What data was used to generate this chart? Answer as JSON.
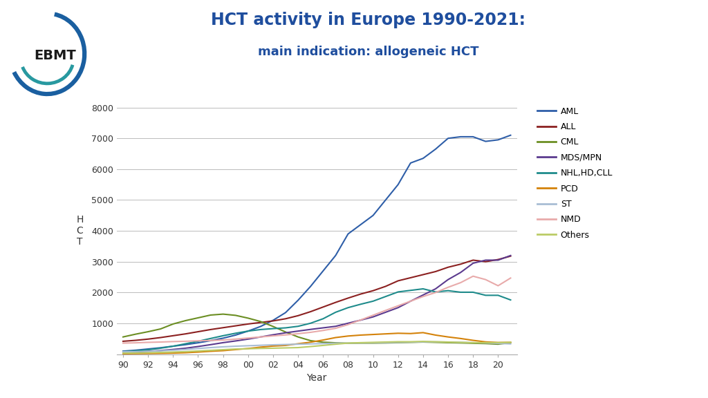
{
  "title_line1": "HCT activity in Europe 1990-2021:",
  "title_line2": "main indication: allogeneic HCT",
  "xlabel": "Year",
  "ylabel": "H\nC\nT",
  "ylim": [
    0,
    8000
  ],
  "yticks": [
    0,
    1000,
    2000,
    3000,
    4000,
    5000,
    6000,
    7000,
    8000
  ],
  "years": [
    1990,
    1991,
    1992,
    1993,
    1994,
    1995,
    1996,
    1997,
    1998,
    1999,
    2000,
    2001,
    2002,
    2003,
    2004,
    2005,
    2006,
    2007,
    2008,
    2009,
    2010,
    2011,
    2012,
    2013,
    2014,
    2015,
    2016,
    2017,
    2018,
    2019,
    2020,
    2021
  ],
  "xtick_labels": [
    "90",
    "92",
    "94",
    "96",
    "98",
    "00",
    "02",
    "04",
    "06",
    "08",
    "10",
    "12",
    "14",
    "16",
    "18",
    "20"
  ],
  "xtick_positions": [
    1990,
    1992,
    1994,
    1996,
    1998,
    2000,
    2002,
    2004,
    2006,
    2008,
    2010,
    2012,
    2014,
    2016,
    2018,
    2020
  ],
  "series": {
    "AML": {
      "color": "#2E5EA8",
      "data": [
        100,
        130,
        170,
        210,
        260,
        310,
        370,
        440,
        520,
        620,
        750,
        900,
        1100,
        1350,
        1750,
        2200,
        2700,
        3200,
        3900,
        4200,
        4500,
        5000,
        5500,
        6200,
        6350,
        6650,
        7000,
        7050,
        7050,
        6900,
        6950,
        7100
      ]
    },
    "ALL": {
      "color": "#8B2020",
      "data": [
        420,
        450,
        490,
        540,
        600,
        660,
        730,
        800,
        860,
        920,
        980,
        1030,
        1080,
        1150,
        1250,
        1380,
        1530,
        1680,
        1820,
        1950,
        2060,
        2200,
        2380,
        2480,
        2580,
        2680,
        2820,
        2920,
        3050,
        3000,
        3070,
        3180
      ]
    },
    "CML": {
      "color": "#6B8E23",
      "data": [
        560,
        650,
        730,
        820,
        980,
        1090,
        1180,
        1270,
        1300,
        1260,
        1170,
        1060,
        900,
        720,
        560,
        440,
        390,
        370,
        355,
        360,
        360,
        365,
        375,
        385,
        395,
        385,
        375,
        365,
        355,
        345,
        325,
        375
      ]
    },
    "MDS/MPN": {
      "color": "#5B3A8E",
      "data": [
        60,
        75,
        95,
        120,
        155,
        195,
        250,
        310,
        375,
        430,
        490,
        560,
        630,
        695,
        750,
        805,
        855,
        905,
        1005,
        1105,
        1210,
        1360,
        1510,
        1720,
        1920,
        2120,
        2420,
        2650,
        2950,
        3050,
        3050,
        3200
      ]
    },
    "NHL,HD,CLL": {
      "color": "#1E8B8B",
      "data": [
        85,
        110,
        145,
        195,
        260,
        340,
        420,
        510,
        600,
        680,
        750,
        800,
        830,
        855,
        905,
        1005,
        1150,
        1360,
        1510,
        1620,
        1720,
        1870,
        2020,
        2070,
        2120,
        2020,
        2060,
        2010,
        2010,
        1910,
        1910,
        1760
      ]
    },
    "PCD": {
      "color": "#D4820A",
      "data": [
        15,
        18,
        22,
        28,
        35,
        48,
        70,
        95,
        115,
        150,
        185,
        230,
        265,
        285,
        340,
        390,
        460,
        540,
        590,
        620,
        640,
        660,
        680,
        670,
        700,
        620,
        560,
        510,
        450,
        400,
        380,
        385
      ]
    },
    "ST": {
      "color": "#A8BDD4",
      "data": [
        80,
        85,
        95,
        110,
        130,
        155,
        185,
        215,
        240,
        260,
        275,
        290,
        305,
        315,
        325,
        335,
        345,
        355,
        360,
        365,
        370,
        375,
        385,
        390,
        400,
        400,
        395,
        385,
        375,
        365,
        350,
        335
      ]
    },
    "NMD": {
      "color": "#E8AAAA",
      "data": [
        360,
        370,
        385,
        395,
        410,
        420,
        435,
        445,
        460,
        490,
        525,
        560,
        595,
        625,
        665,
        710,
        770,
        840,
        960,
        1110,
        1265,
        1420,
        1570,
        1720,
        1870,
        2000,
        2170,
        2320,
        2530,
        2420,
        2220,
        2470
      ]
    },
    "Others": {
      "color": "#BBCC66",
      "data": [
        35,
        40,
        48,
        58,
        70,
        85,
        105,
        125,
        148,
        168,
        178,
        188,
        195,
        205,
        215,
        248,
        285,
        325,
        360,
        375,
        385,
        395,
        405,
        405,
        415,
        405,
        395,
        385,
        375,
        375,
        375,
        385
      ]
    }
  },
  "background_color": "#FFFFFF",
  "title_color": "#1F4E9E",
  "subtitle_color": "#1F4E9E"
}
